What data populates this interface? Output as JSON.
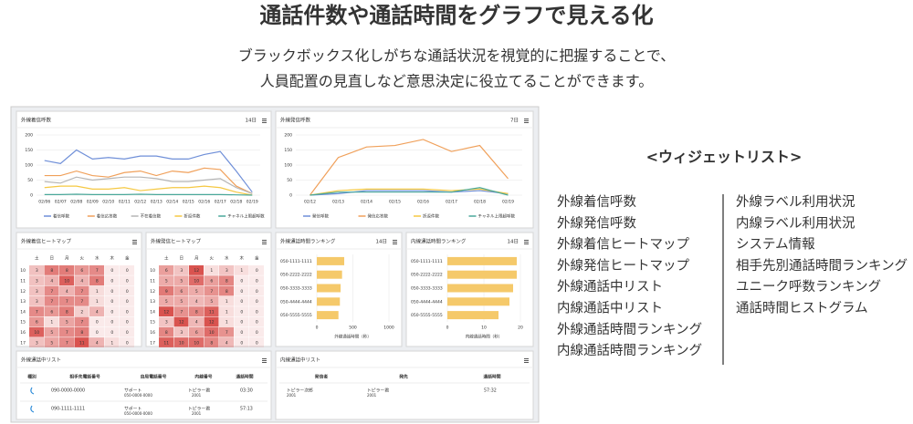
{
  "header": {
    "title": "通話件数や通話時間をグラフで見える化",
    "subtitle": [
      "ブラックボックス化しがちな通話状況を視覚的に把握することで、",
      "人員配置の見直しなど意思決定に役立てることができます。"
    ]
  },
  "incoming_calls": {
    "type": "line",
    "title": "外線着信呼数",
    "period": "14日",
    "categories": [
      "02/06",
      "02/07",
      "02/08",
      "02/09",
      "02/10",
      "02/11",
      "02/12",
      "02/13",
      "02/14",
      "02/15",
      "02/16",
      "02/17",
      "02/18",
      "02/19"
    ],
    "series": [
      {
        "name": "着信呼数",
        "color": "#6f8fd8",
        "values": [
          115,
          105,
          150,
          120,
          125,
          120,
          130,
          130,
          120,
          120,
          135,
          145,
          80,
          10
        ]
      },
      {
        "name": "着信応答数",
        "color": "#f0a05a",
        "values": [
          65,
          65,
          80,
          65,
          60,
          75,
          80,
          65,
          80,
          75,
          90,
          85,
          30,
          5
        ]
      },
      {
        "name": "不在着信数",
        "color": "#b5b5b5",
        "values": [
          45,
          40,
          60,
          50,
          55,
          60,
          60,
          55,
          45,
          45,
          50,
          55,
          25,
          5
        ]
      },
      {
        "name": "折返件数",
        "color": "#f5c842",
        "values": [
          25,
          30,
          30,
          20,
          20,
          25,
          15,
          20,
          25,
          25,
          30,
          25,
          10,
          0
        ]
      },
      {
        "name": "チャネル上限超呼数",
        "color": "#4aa89a",
        "values": [
          2,
          2,
          3,
          2,
          2,
          2,
          3,
          2,
          2,
          2,
          2,
          2,
          1,
          0
        ]
      }
    ],
    "ylim": [
      0,
      200
    ],
    "yticks": [
      0,
      50,
      100,
      150,
      200
    ],
    "grid": true
  },
  "outgoing_calls": {
    "type": "line",
    "title": "外線発信呼数",
    "period": "7日",
    "categories": [
      "02/12",
      "02/13",
      "02/14",
      "02/15",
      "02/16",
      "02/17",
      "02/18",
      "02/19"
    ],
    "series": [
      {
        "name": "発信呼数",
        "color": "#6f8fd8",
        "values": [
          0,
          5,
          15,
          15,
          15,
          10,
          15,
          5
        ]
      },
      {
        "name": "発信応答数",
        "color": "#f0a05a",
        "values": [
          0,
          125,
          160,
          165,
          185,
          145,
          165,
          55
        ]
      },
      {
        "name": "折返件数",
        "color": "#f5c842",
        "values": [
          0,
          15,
          20,
          20,
          20,
          15,
          20,
          5
        ]
      },
      {
        "name": "チャネル上限超呼数",
        "color": "#4aa89a",
        "values": [
          0,
          10,
          10,
          10,
          10,
          10,
          25,
          0
        ]
      }
    ],
    "ylim": [
      0,
      200
    ],
    "yticks": [
      0,
      50,
      100,
      150,
      200
    ],
    "grid": true
  },
  "incoming_heatmap": {
    "type": "heatmap",
    "title": "外線着信ヒートマップ",
    "columns": [
      "土",
      "日",
      "月",
      "火",
      "水",
      "木",
      "金"
    ],
    "rows": [
      "10",
      "11",
      "12",
      "13",
      "14",
      "15",
      "16",
      "17"
    ],
    "values": [
      [
        3,
        8,
        8,
        6,
        7,
        0,
        0
      ],
      [
        3,
        4,
        10,
        4,
        8,
        0,
        0
      ],
      [
        3,
        7,
        4,
        7,
        1,
        0,
        0
      ],
      [
        3,
        7,
        7,
        7,
        1,
        0,
        0
      ],
      [
        7,
        6,
        8,
        2,
        4,
        0,
        0
      ],
      [
        6,
        1,
        5,
        7,
        0,
        0,
        0
      ],
      [
        10,
        5,
        7,
        8,
        0,
        0,
        0
      ],
      [
        3,
        5,
        7,
        11,
        4,
        1,
        0
      ]
    ],
    "color": "#d9534f"
  },
  "outgoing_heatmap": {
    "type": "heatmap",
    "title": "外線発信ヒートマップ",
    "columns": [
      "土",
      "日",
      "月",
      "火",
      "水",
      "木",
      "金"
    ],
    "rows": [
      "10",
      "11",
      "12",
      "13",
      "14",
      "15",
      "16",
      "17"
    ],
    "values": [
      [
        6,
        3,
        12,
        1,
        3,
        1,
        0
      ],
      [
        5,
        5,
        10,
        6,
        8,
        0,
        0
      ],
      [
        9,
        6,
        5,
        7,
        8,
        0,
        0
      ],
      [
        5,
        5,
        4,
        5,
        1,
        0,
        0
      ],
      [
        12,
        7,
        8,
        11,
        1,
        0,
        0
      ],
      [
        3,
        12,
        4,
        12,
        1,
        0,
        0
      ],
      [
        8,
        3,
        6,
        10,
        7,
        0,
        0
      ],
      [
        11,
        10,
        10,
        8,
        4,
        0,
        0
      ]
    ],
    "color": "#d9534f"
  },
  "external_ranking": {
    "type": "hbar",
    "title": "外線通話時間ランキング",
    "period": "14日",
    "categories": [
      "050-1111-1111",
      "050-2222-2222",
      "050-3333-3333",
      "050-4444-4444",
      "050-5555-5555"
    ],
    "values": [
      380,
      350,
      330,
      320,
      300
    ],
    "color": "#f5c96a",
    "xlim": [
      0,
      1000
    ],
    "xticks": [
      0,
      500,
      1000
    ],
    "xlabel": "外線通話時間（秒）"
  },
  "internal_ranking": {
    "type": "hbar",
    "title": "内線通話時間ランキング",
    "period": "14日",
    "categories": [
      "050-1111-1111",
      "050-2222-2222",
      "050-3333-3333",
      "050-4444-4444",
      "050-5555-5555"
    ],
    "values": [
      19,
      19,
      18,
      17,
      14
    ],
    "color": "#f5c96a",
    "xlim": [
      0,
      20
    ],
    "xticks": [
      0,
      10,
      20
    ],
    "xlabel": "内線通話時間（秒）"
  },
  "external_list": {
    "title": "外線通話中リスト",
    "columns": [
      "種別",
      "相手先電話番号",
      "自局電話番号",
      "内線番号",
      "通話時間"
    ],
    "rows": [
      [
        "090-0000-0000",
        "サポート",
        "050-0000-0000",
        "トピラー君",
        "2001",
        "03:30"
      ],
      [
        "090-1111-1111",
        "サポート",
        "050-0000-0000",
        "トピラー君",
        "2001",
        "57:13"
      ]
    ]
  },
  "internal_list": {
    "title": "内線通話中リスト",
    "columns": [
      "発信者",
      "発先",
      "通話時間"
    ],
    "rows": [
      [
        "トピラー次郎",
        "2001",
        "トピラー君",
        "2001",
        "57:32"
      ]
    ]
  },
  "widget_list": {
    "heading": "<ウィジェットリスト>",
    "left": [
      "外線着信呼数",
      "外線発信呼数",
      "外線着信ヒートマップ",
      "外線発信ヒートマップ",
      "外線通話中リスト",
      "内線通話中リスト",
      "外線通話時間ランキング",
      "内線通話時間ランキング"
    ],
    "right": [
      "外線ラベル利用状況",
      "内線ラベル利用状況",
      "システム情報",
      "相手先別通話時間ランキング",
      "ユニーク呼数ランキング",
      "通話時間ヒストグラム"
    ]
  }
}
